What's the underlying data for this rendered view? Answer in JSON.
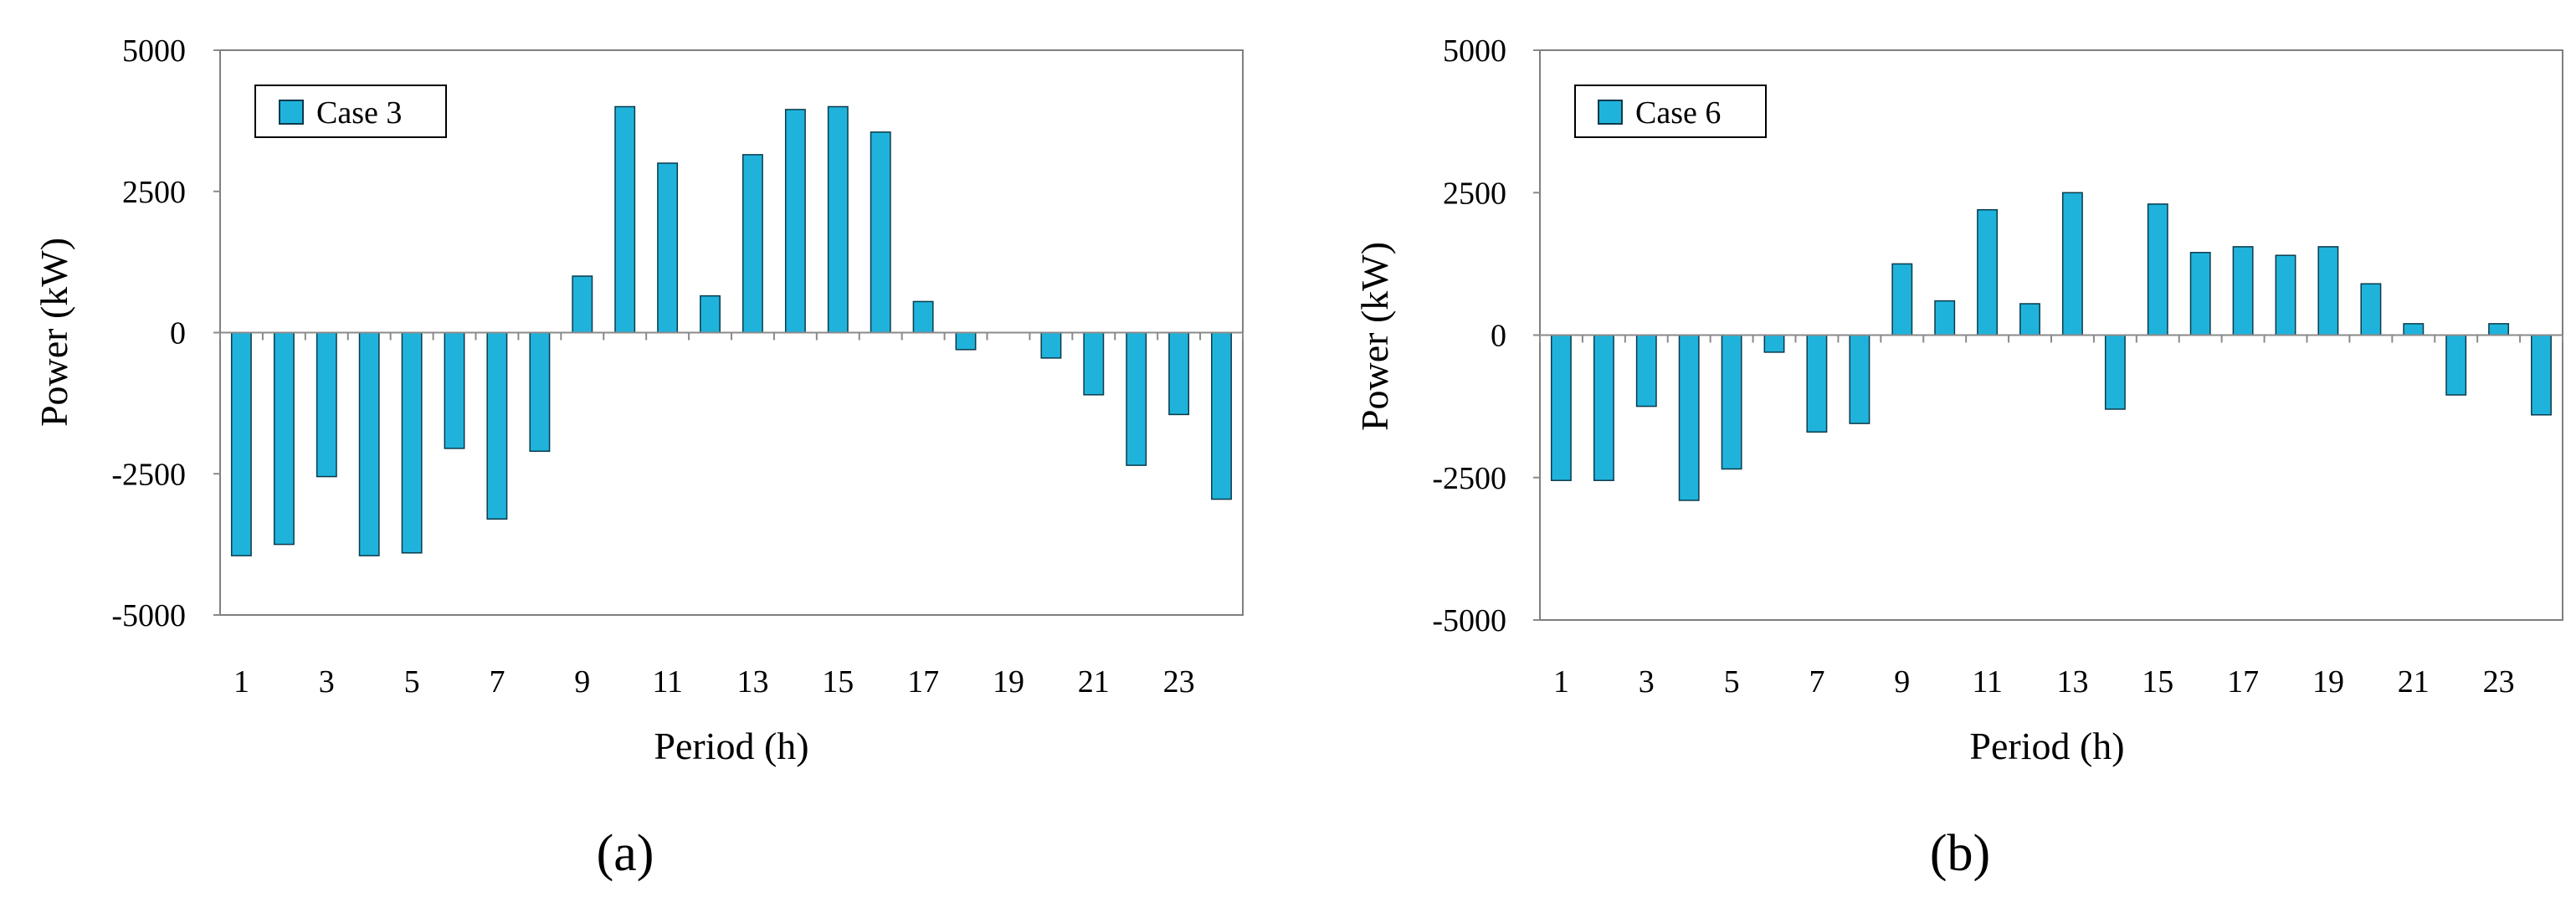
{
  "colors": {
    "bar": "#1fb3dc",
    "bar_edge": "#0b3a4a",
    "axis": "#8a8a8a"
  },
  "chart_data": [
    {
      "type": "bar",
      "panel_label": "(a)",
      "legend": "Case 3",
      "xlabel": "Period (h)",
      "ylabel": "Power (kW)",
      "ylim": [
        -5000,
        5000
      ],
      "yticks": [
        5000,
        2500,
        0,
        -2500,
        -5000
      ],
      "yticklabels": [
        "5000",
        "2500",
        "0",
        "-2500",
        "-5000"
      ],
      "xticklabels": [
        "1",
        "3",
        "5",
        "7",
        "9",
        "11",
        "13",
        "15",
        "17",
        "19",
        "21",
        "23"
      ],
      "categories": [
        1,
        2,
        3,
        4,
        5,
        6,
        7,
        8,
        9,
        10,
        11,
        12,
        13,
        14,
        15,
        16,
        17,
        18,
        19,
        20,
        21,
        22,
        23,
        24
      ],
      "values": [
        -3950,
        -3750,
        -2550,
        -3950,
        -3900,
        -2050,
        -3300,
        -2100,
        1000,
        4000,
        3000,
        650,
        3150,
        3950,
        4000,
        3550,
        550,
        -300,
        0,
        -450,
        -1100,
        -2350,
        -1450,
        -2950
      ]
    },
    {
      "type": "bar",
      "panel_label": "(b)",
      "legend": "Case 6",
      "xlabel": "Period (h)",
      "ylabel": "Power (kW)",
      "ylim": [
        -5000,
        5000
      ],
      "yticks": [
        5000,
        2500,
        0,
        -2500,
        -5000
      ],
      "yticklabels": [
        "5000",
        "2500",
        "0",
        "-2500",
        "-5000"
      ],
      "xticklabels": [
        "1",
        "3",
        "5",
        "7",
        "9",
        "11",
        "13",
        "15",
        "17",
        "19",
        "21",
        "23"
      ],
      "categories": [
        1,
        2,
        3,
        4,
        5,
        6,
        7,
        8,
        9,
        10,
        11,
        12,
        13,
        14,
        15,
        16,
        17,
        18,
        19,
        20,
        21,
        22,
        23,
        24
      ],
      "values": [
        -2550,
        -2550,
        -1250,
        -2900,
        -2350,
        -300,
        -1700,
        -1550,
        1250,
        600,
        2200,
        550,
        2500,
        -1300,
        2300,
        1450,
        1550,
        1400,
        1550,
        900,
        200,
        -1050,
        200,
        -1400
      ]
    }
  ]
}
